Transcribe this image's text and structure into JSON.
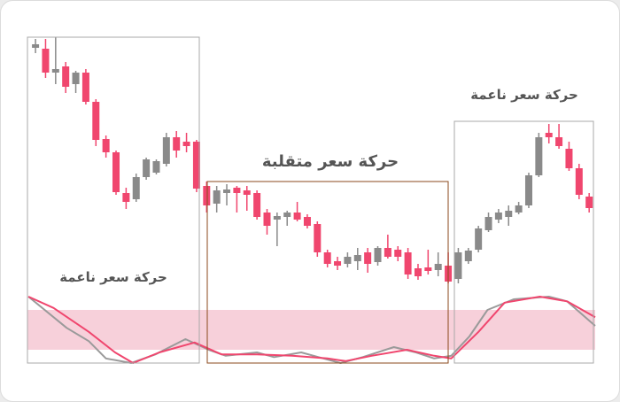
{
  "chart_data": [
    {
      "type": "candlestick",
      "annotations": [
        "حركة سعر ناعمة",
        "حركة سعر متقلبة",
        "حركة سعر ناعمة"
      ],
      "up_color": "#8a8a8a",
      "down_color": "#f0466e",
      "ylim": [
        124,
        414
      ],
      "xlim": [
        -0.8,
        55.6
      ],
      "candles": [
        {
          "open": 400,
          "high": 410,
          "low": 394,
          "close": 404
        },
        {
          "open": 399,
          "high": 410,
          "low": 366,
          "close": 372
        },
        {
          "open": 372,
          "high": 412,
          "low": 359,
          "close": 376
        },
        {
          "open": 379,
          "high": 384,
          "low": 349,
          "close": 356
        },
        {
          "open": 359,
          "high": 374,
          "low": 349,
          "close": 372
        },
        {
          "open": 372,
          "high": 376,
          "low": 336,
          "close": 339
        },
        {
          "open": 339,
          "high": 342,
          "low": 289,
          "close": 296
        },
        {
          "open": 297,
          "high": 301,
          "low": 276,
          "close": 282
        },
        {
          "open": 282,
          "high": 284,
          "low": 234,
          "close": 237
        },
        {
          "open": 236,
          "high": 242,
          "low": 218,
          "close": 226
        },
        {
          "open": 229,
          "high": 258,
          "low": 226,
          "close": 254
        },
        {
          "open": 254,
          "high": 276,
          "low": 251,
          "close": 274
        },
        {
          "open": 259,
          "high": 274,
          "low": 257,
          "close": 272
        },
        {
          "open": 269,
          "high": 304,
          "low": 266,
          "close": 299
        },
        {
          "open": 299,
          "high": 306,
          "low": 276,
          "close": 284
        },
        {
          "open": 294,
          "high": 304,
          "low": 282,
          "close": 289
        },
        {
          "open": 294,
          "high": 296,
          "low": 237,
          "close": 241
        },
        {
          "open": 244,
          "high": 249,
          "low": 214,
          "close": 222
        },
        {
          "open": 224,
          "high": 244,
          "low": 214,
          "close": 239
        },
        {
          "open": 236,
          "high": 246,
          "low": 222,
          "close": 240
        },
        {
          "open": 242,
          "high": 244,
          "low": 214,
          "close": 236
        },
        {
          "open": 239,
          "high": 244,
          "low": 216,
          "close": 234
        },
        {
          "open": 236,
          "high": 239,
          "low": 206,
          "close": 209
        },
        {
          "open": 214,
          "high": 218,
          "low": 189,
          "close": 199
        },
        {
          "open": 206,
          "high": 214,
          "low": 176,
          "close": 210
        },
        {
          "open": 209,
          "high": 216,
          "low": 199,
          "close": 214
        },
        {
          "open": 214,
          "high": 226,
          "low": 204,
          "close": 206
        },
        {
          "open": 209,
          "high": 212,
          "low": 196,
          "close": 199
        },
        {
          "open": 201,
          "high": 204,
          "low": 164,
          "close": 169
        },
        {
          "open": 169,
          "high": 172,
          "low": 152,
          "close": 156
        },
        {
          "open": 159,
          "high": 164,
          "low": 149,
          "close": 154
        },
        {
          "open": 156,
          "high": 169,
          "low": 152,
          "close": 164
        },
        {
          "open": 159,
          "high": 174,
          "low": 149,
          "close": 166
        },
        {
          "open": 169,
          "high": 174,
          "low": 146,
          "close": 156
        },
        {
          "open": 158,
          "high": 176,
          "low": 154,
          "close": 174
        },
        {
          "open": 174,
          "high": 189,
          "low": 162,
          "close": 164
        },
        {
          "open": 172,
          "high": 176,
          "low": 159,
          "close": 164
        },
        {
          "open": 169,
          "high": 174,
          "low": 139,
          "close": 144
        },
        {
          "open": 151,
          "high": 156,
          "low": 138,
          "close": 142
        },
        {
          "open": 152,
          "high": 172,
          "low": 144,
          "close": 148
        },
        {
          "open": 149,
          "high": 169,
          "low": 142,
          "close": 156
        },
        {
          "open": 154,
          "high": 169,
          "low": 134,
          "close": 136
        },
        {
          "open": 139,
          "high": 174,
          "low": 134,
          "close": 169
        },
        {
          "open": 159,
          "high": 174,
          "low": 156,
          "close": 171
        },
        {
          "open": 172,
          "high": 199,
          "low": 169,
          "close": 196
        },
        {
          "open": 194,
          "high": 214,
          "low": 192,
          "close": 209
        },
        {
          "open": 206,
          "high": 218,
          "low": 202,
          "close": 214
        },
        {
          "open": 209,
          "high": 222,
          "low": 199,
          "close": 216
        },
        {
          "open": 214,
          "high": 226,
          "low": 212,
          "close": 222
        },
        {
          "open": 222,
          "high": 259,
          "low": 219,
          "close": 256
        },
        {
          "open": 256,
          "high": 304,
          "low": 254,
          "close": 299
        },
        {
          "open": 304,
          "high": 314,
          "low": 292,
          "close": 299
        },
        {
          "open": 299,
          "high": 314,
          "low": 286,
          "close": 289
        },
        {
          "open": 286,
          "high": 294,
          "low": 261,
          "close": 264
        },
        {
          "open": 264,
          "high": 269,
          "low": 229,
          "close": 234
        },
        {
          "open": 232,
          "high": 236,
          "low": 214,
          "close": 219
        }
      ]
    },
    {
      "type": "line",
      "ylim": [
        0,
        100
      ],
      "xlim": [
        -0.8,
        55.6
      ],
      "levels": [
        20,
        80
      ],
      "band_color": "#f7d0da",
      "series": [
        {
          "color": "#9a9a9a",
          "x": [
            -0.7,
            3.1,
            5.3,
            7,
            9.5,
            11.9,
            14.9,
            17.2,
            18.9,
            22,
            23.7,
            26.4,
            28.6,
            30.3,
            32.5,
            35.6,
            37.8,
            39.6,
            41.3,
            43.1,
            44.9,
            47.5,
            51,
            52.8,
            55.6
          ],
          "values": [
            100,
            53,
            33,
            7,
            0,
            13,
            36,
            20,
            11,
            16,
            9,
            16,
            7,
            0,
            9,
            24,
            16,
            7,
            11,
            40,
            80,
            96,
            100,
            93,
            56
          ]
        },
        {
          "color": "#f0466e",
          "x": [
            -0.7,
            1.8,
            5.3,
            7.9,
            9.7,
            12.3,
            15.8,
            18.5,
            22,
            25.5,
            29,
            30.8,
            33.4,
            36.9,
            39.6,
            41.3,
            44,
            46.6,
            50.1,
            52.8,
            55.6
          ],
          "values": [
            100,
            83,
            47,
            16,
            0,
            16,
            31,
            13,
            13,
            11,
            7,
            3,
            11,
            20,
            11,
            7,
            47,
            91,
            100,
            93,
            69
          ]
        }
      ]
    }
  ]
}
